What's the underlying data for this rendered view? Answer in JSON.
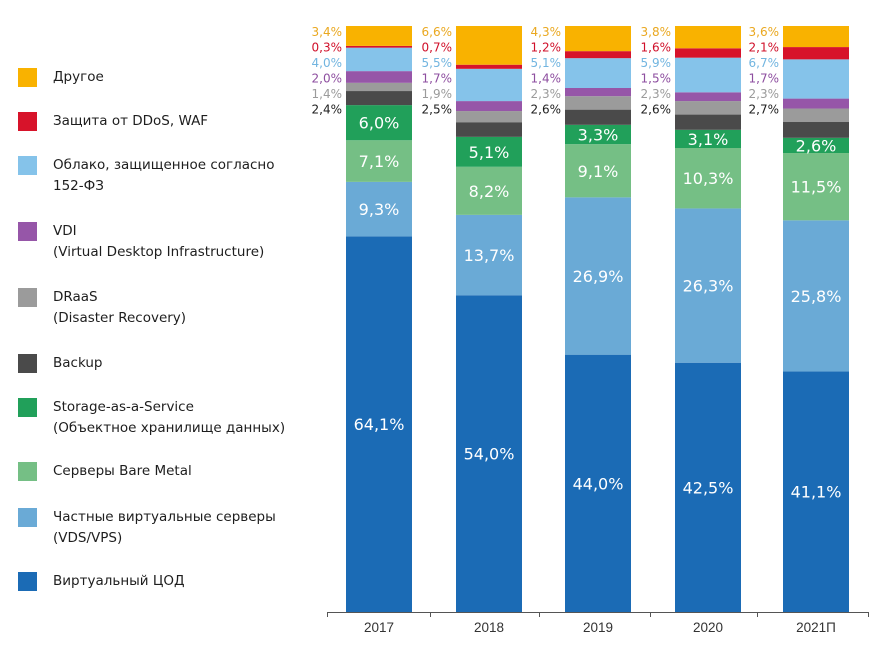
{
  "chart_data": {
    "type": "bar",
    "stacked": true,
    "title": "",
    "xlabel": "",
    "ylabel": "",
    "ylim": [
      0,
      100
    ],
    "unit": "%",
    "grid": false,
    "legend_position": "left",
    "categories": [
      "2017",
      "2018",
      "2019",
      "2020",
      "2021П"
    ],
    "series": [
      {
        "name": "Виртуальный ЦОД",
        "legend_label": "Виртуальный ЦОД",
        "color": "#1b6bb5",
        "label_position": "inside",
        "values": [
          64.1,
          54.0,
          44.0,
          42.5,
          41.1
        ],
        "labels": [
          "64,1%",
          "54,0%",
          "44,0%",
          "42,5%",
          "41,1%"
        ]
      },
      {
        "name": "Частные виртуальные серверы (VDS/VPS)",
        "legend_label": "Частные виртуальные серверы\n(VDS/VPS)",
        "color": "#6aaad6",
        "label_position": "inside",
        "values": [
          9.3,
          13.7,
          26.9,
          26.3,
          25.8
        ],
        "labels": [
          "9,3%",
          "13,7%",
          "26,9%",
          "26,3%",
          "25,8%"
        ]
      },
      {
        "name": "Серверы Bare Metal",
        "legend_label": "Серверы Bare Metal",
        "color": "#75bf85",
        "label_position": "inside",
        "values": [
          7.1,
          8.2,
          9.1,
          10.3,
          11.5
        ],
        "labels": [
          "7,1%",
          "8,2%",
          "9,1%",
          "10,3%",
          "11,5%"
        ]
      },
      {
        "name": "Storage-as-a-Service (Объектное хранилище данных)",
        "legend_label": "Storage-as-a-Service\n(Объектное хранилище данных)",
        "color": "#21a05a",
        "label_position": "inside",
        "values": [
          6.0,
          5.1,
          3.3,
          3.1,
          2.6
        ],
        "labels": [
          "6,0%",
          "5,1%",
          "3,3%",
          "3,1%",
          "2,6%"
        ]
      },
      {
        "name": "Backup",
        "legend_label": "Backup",
        "color": "#4a4a4a",
        "label_color": "#1e1e1e",
        "label_position": "left",
        "values": [
          2.4,
          2.5,
          2.6,
          2.6,
          2.7
        ],
        "labels": [
          "2,4%",
          "2,5%",
          "2,6%",
          "2,6%",
          "2,7%"
        ]
      },
      {
        "name": "DRaaS (Disaster Recovery)",
        "legend_label": "DRaaS\n(Disaster Recovery)",
        "color": "#9b9b9b",
        "label_color": "#9b9b9b",
        "label_position": "left",
        "values": [
          1.4,
          1.9,
          2.3,
          2.3,
          2.3
        ],
        "labels": [
          "1,4%",
          "1,9%",
          "2,3%",
          "2,3%",
          "2,3%"
        ]
      },
      {
        "name": "VDI (Virtual Desktop Infrastructure)",
        "legend_label": "VDI\n(Virtual Desktop Infrastructure)",
        "color": "#9656a8",
        "label_color": "#8e4fa0",
        "label_position": "left",
        "values": [
          2.0,
          1.7,
          1.4,
          1.5,
          1.7
        ],
        "labels": [
          "2,0%",
          "1,7%",
          "1,4%",
          "1,5%",
          "1,7%"
        ]
      },
      {
        "name": "Облако, защищенное согласно 152-ФЗ",
        "legend_label": "Облако, защищенное согласно\n152-ФЗ",
        "color": "#85c3ea",
        "label_color": "#72b5e0",
        "label_position": "left",
        "values": [
          4.0,
          5.5,
          5.1,
          5.9,
          6.7
        ],
        "labels": [
          "4,0%",
          "5,5%",
          "5,1%",
          "5,9%",
          "6,7%"
        ]
      },
      {
        "name": "Защита от DDoS, WAF",
        "legend_label": "Защита от DDoS, WAF",
        "color": "#d7132a",
        "label_color": "#d0102a",
        "label_position": "left",
        "values": [
          0.3,
          0.7,
          1.2,
          1.6,
          2.1
        ],
        "labels": [
          "0,3%",
          "0,7%",
          "1,2%",
          "1,6%",
          "2,1%"
        ]
      },
      {
        "name": "Другое",
        "legend_label": "Другое",
        "color": "#f9b200",
        "label_color": "#eaa820",
        "label_position": "left",
        "values": [
          3.4,
          6.6,
          4.3,
          3.8,
          3.6
        ],
        "labels": [
          "3,4%",
          "6,6%",
          "4,3%",
          "3,8%",
          "3,6%"
        ]
      }
    ]
  }
}
